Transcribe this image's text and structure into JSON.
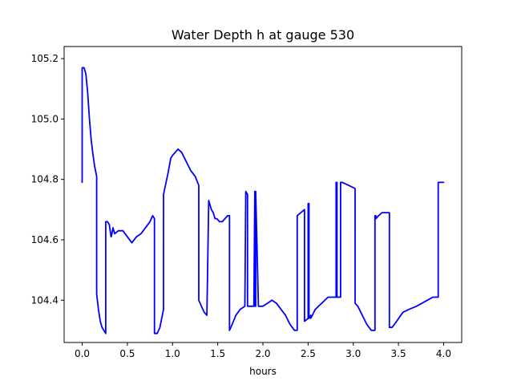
{
  "chart_data": {
    "type": "line",
    "title": "Water Depth h at gauge 530",
    "xlabel": "hours",
    "ylabel": "",
    "xlim": [
      -0.2,
      4.2
    ],
    "ylim": [
      104.26,
      105.24
    ],
    "xticks": [
      0.0,
      0.5,
      1.0,
      1.5,
      2.0,
      2.5,
      3.0,
      3.5,
      4.0
    ],
    "xtick_labels": [
      "0.0",
      "0.5",
      "1.0",
      "1.5",
      "2.0",
      "2.5",
      "3.0",
      "3.5",
      "4.0"
    ],
    "yticks": [
      104.4,
      104.6,
      104.8,
      105.0,
      105.2
    ],
    "ytick_labels": [
      "104.4",
      "104.6",
      "104.8",
      "105.0",
      "105.2"
    ],
    "grid": false,
    "legend": "none",
    "color": "#0000ff",
    "series": [
      {
        "x": [
          0.0,
          0.0,
          0.02,
          0.04,
          0.06,
          0.08,
          0.1,
          0.12,
          0.14,
          0.16,
          0.16,
          0.18,
          0.2,
          0.22,
          0.26,
          0.26,
          0.28,
          0.3,
          0.32,
          0.33,
          0.34,
          0.36,
          0.4,
          0.45,
          0.5,
          0.55,
          0.6,
          0.65,
          0.7,
          0.75,
          0.78,
          0.8,
          0.8,
          0.83,
          0.86,
          0.9,
          0.9,
          0.95,
          0.98,
          1.0,
          1.03,
          1.06,
          1.1,
          1.15,
          1.2,
          1.25,
          1.29,
          1.29,
          1.32,
          1.35,
          1.38,
          1.4,
          1.41,
          1.43,
          1.45,
          1.47,
          1.49,
          1.52,
          1.55,
          1.58,
          1.61,
          1.63,
          1.63,
          1.66,
          1.7,
          1.75,
          1.8,
          1.81,
          1.81,
          1.83,
          1.83,
          1.87,
          1.9,
          1.91,
          1.91,
          1.92,
          1.92,
          1.95,
          2.0,
          2.05,
          2.1,
          2.15,
          2.2,
          2.25,
          2.3,
          2.35,
          2.38,
          2.38,
          2.42,
          2.46,
          2.46,
          2.5,
          2.5,
          2.51,
          2.51,
          2.53,
          2.53,
          2.58,
          2.65,
          2.72,
          2.78,
          2.81,
          2.81,
          2.82,
          2.82,
          2.86,
          2.86,
          2.88,
          2.88,
          2.95,
          3.02,
          3.02,
          3.05,
          3.1,
          3.15,
          3.2,
          3.24,
          3.24,
          3.25,
          3.25,
          3.28,
          3.32,
          3.36,
          3.4,
          3.4,
          3.43,
          3.48,
          3.55,
          3.62,
          3.7,
          3.76,
          3.82,
          3.88,
          3.94,
          3.94,
          3.96,
          3.98,
          4.0
        ],
        "y": [
          104.79,
          105.17,
          105.17,
          105.15,
          105.09,
          105.0,
          104.93,
          104.88,
          104.84,
          104.81,
          104.42,
          104.37,
          104.33,
          104.31,
          104.29,
          104.66,
          104.66,
          104.65,
          104.61,
          104.62,
          104.64,
          104.62,
          104.63,
          104.63,
          104.61,
          104.59,
          104.61,
          104.62,
          104.64,
          104.66,
          104.68,
          104.67,
          104.29,
          104.29,
          104.31,
          104.37,
          104.75,
          104.82,
          104.87,
          104.88,
          104.89,
          104.9,
          104.89,
          104.86,
          104.83,
          104.81,
          104.78,
          104.4,
          104.38,
          104.36,
          104.35,
          104.73,
          104.72,
          104.7,
          104.69,
          104.67,
          104.67,
          104.66,
          104.66,
          104.67,
          104.68,
          104.68,
          104.3,
          104.32,
          104.35,
          104.37,
          104.38,
          104.76,
          104.76,
          104.75,
          104.38,
          104.38,
          104.38,
          104.76,
          104.38,
          104.38,
          104.76,
          104.38,
          104.38,
          104.39,
          104.4,
          104.39,
          104.37,
          104.35,
          104.32,
          104.3,
          104.3,
          104.68,
          104.69,
          104.7,
          104.33,
          104.34,
          104.72,
          104.72,
          104.34,
          104.35,
          104.34,
          104.37,
          104.39,
          104.41,
          104.41,
          104.41,
          104.79,
          104.79,
          104.41,
          104.41,
          104.79,
          104.79,
          104.79,
          104.78,
          104.77,
          104.39,
          104.38,
          104.35,
          104.32,
          104.3,
          104.3,
          104.68,
          104.68,
          104.67,
          104.68,
          104.69,
          104.69,
          104.69,
          104.31,
          104.31,
          104.33,
          104.36,
          104.37,
          104.38,
          104.39,
          104.4,
          104.41,
          104.41,
          104.79,
          104.79,
          104.79,
          104.79
        ]
      }
    ]
  }
}
